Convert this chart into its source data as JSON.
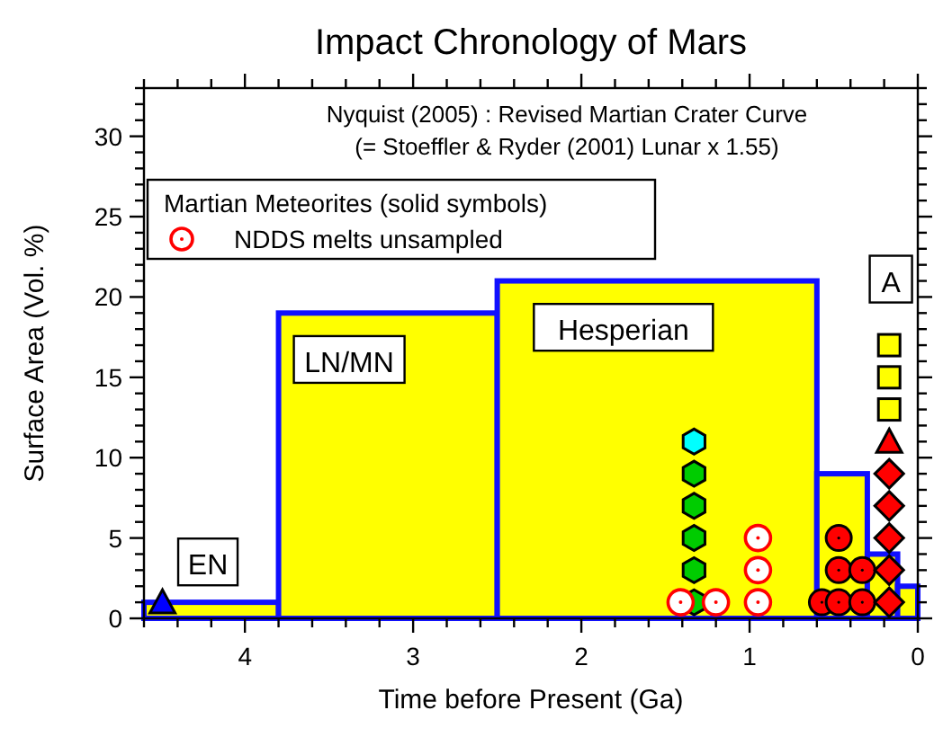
{
  "chart_data": {
    "type": "histogram",
    "title": "Impact Chronology of Mars",
    "xlabel": "Time before Present (Ga)",
    "ylabel": "Surface Area (Vol. %)",
    "legend_title": "Martian Meteorites (solid symbols)",
    "legend": "top left",
    "xlim": [
      4.6,
      0
    ],
    "ylim": [
      0,
      33
    ],
    "xticks": [
      {
        "value": 4.6,
        "label": null
      },
      {
        "value": 4.4,
        "label": null
      },
      {
        "value": 4.2,
        "label": null
      },
      4,
      {
        "value": 3.8,
        "label": null
      },
      {
        "value": 3.6,
        "label": null
      },
      {
        "value": 3.4,
        "label": null
      },
      {
        "value": 3.2,
        "label": null
      },
      3,
      {
        "value": 2.8,
        "label": null
      },
      {
        "value": 2.6,
        "label": null
      },
      {
        "value": 2.4,
        "label": null
      },
      {
        "value": 2.2,
        "label": null
      },
      2,
      {
        "value": 1.8,
        "label": null
      },
      {
        "value": 1.6,
        "label": null
      },
      {
        "value": 1.4,
        "label": null
      },
      {
        "value": 1.2,
        "label": null
      },
      1,
      {
        "value": 0.8,
        "label": null
      },
      {
        "value": 0.6,
        "label": null
      },
      {
        "value": 0.4,
        "label": null
      },
      {
        "value": 0.2,
        "label": null
      },
      0
    ],
    "yticks": [
      0,
      {
        "value": 1,
        "label": null
      },
      {
        "value": 2,
        "label": null
      },
      {
        "value": 3,
        "label": null
      },
      {
        "value": 4,
        "label": null
      },
      5,
      {
        "value": 6,
        "label": null
      },
      {
        "value": 7,
        "label": null
      },
      {
        "value": 8,
        "label": null
      },
      {
        "value": 9,
        "label": null
      },
      10,
      {
        "value": 11,
        "label": null
      },
      {
        "value": 12,
        "label": null
      },
      {
        "value": 13,
        "label": null
      },
      {
        "value": 14,
        "label": null
      },
      15,
      {
        "value": 16,
        "label": null
      },
      {
        "value": 17,
        "label": null
      },
      {
        "value": 18,
        "label": null
      },
      {
        "value": 19,
        "label": null
      },
      20,
      {
        "value": 21,
        "label": null
      },
      {
        "value": 22,
        "label": null
      },
      {
        "value": 23,
        "label": null
      },
      {
        "value": 24,
        "label": null
      },
      25,
      {
        "value": 26,
        "label": null
      },
      {
        "value": 27,
        "label": null
      },
      {
        "value": 28,
        "label": null
      },
      {
        "value": 29,
        "label": null
      },
      30,
      {
        "value": 31,
        "label": null
      },
      {
        "value": 32,
        "label": null
      },
      {
        "value": 33,
        "label": null
      }
    ],
    "series": [
      {
        "color": "#ffff00",
        "bins": [
          4.6,
          3.8,
          2.5,
          0.6,
          0.3,
          0.12,
          0
        ],
        "values": [
          1,
          19,
          21,
          9,
          4,
          2
        ]
      },
      {
        "type": "scatter",
        "color": "#0000ff",
        "marker": "triangle",
        "x": [
          4.49
        ],
        "values": [
          1
        ]
      },
      {
        "type": "scatter",
        "color": "#00cc00",
        "x": [
          1.33,
          1.33,
          1.33,
          1.33,
          1.33
        ],
        "values": [
          1,
          3,
          5,
          7,
          9
        ]
      },
      {
        "type": "scatter",
        "color": "#00ffff",
        "x": [
          1.33
        ],
        "values": [
          11
        ]
      },
      {
        "type": "scatter",
        "name": "NDDS melts unsampled",
        "color": "#ff0000",
        "marker": "circle-open",
        "x": [
          1.41,
          1.2,
          0.95,
          0.95,
          0.95
        ],
        "values": [
          1,
          1,
          1,
          3,
          5
        ]
      },
      {
        "type": "scatter",
        "color": "#ff0000",
        "marker": "circle",
        "x": [
          0.57,
          0.47,
          0.47,
          0.47,
          0.33,
          0.33
        ],
        "values": [
          1,
          1,
          3,
          5,
          1,
          3
        ]
      },
      {
        "type": "scatter",
        "color": "#ff0000",
        "marker": "diamond",
        "x": [
          0.17,
          0.17,
          0.17,
          0.17,
          0.17
        ],
        "values": [
          1,
          3,
          5,
          7,
          9
        ]
      },
      {
        "type": "scatter",
        "color": "#ff0000",
        "marker": "triangle",
        "x": [
          0.17
        ],
        "values": [
          11
        ]
      },
      {
        "type": "scatter",
        "color": "#ffff00",
        "marker": "square",
        "x": [
          0.17,
          0.17,
          0.17
        ],
        "values": [
          13,
          15,
          17
        ]
      }
    ],
    "annotations": [
      "Nyquist (2005) : Revised Martian Crater Curve",
      "(= Stoeffler & Ryder (2001) Lunar x 1.55)",
      "EN",
      "LN/MN",
      "Hesperian",
      "A"
    ]
  }
}
